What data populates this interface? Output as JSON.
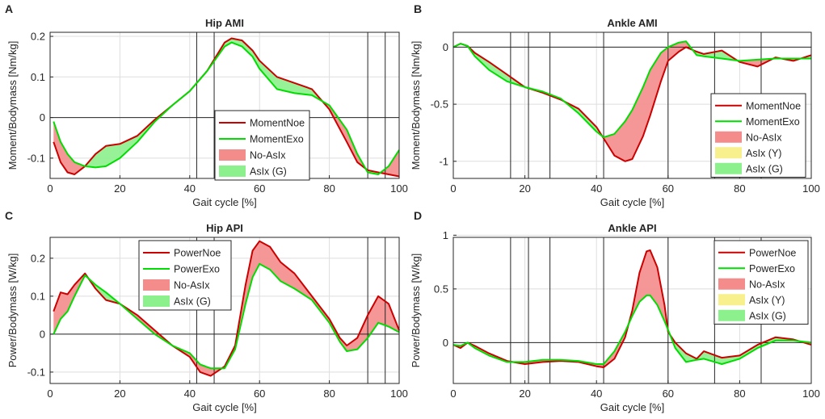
{
  "chart_data": [
    {
      "panel": "A",
      "type": "line",
      "title": "Hip AMI",
      "xlabel": "Gait cycle [%]",
      "ylabel": "Moment/Bodymass [Nm/kg]",
      "xlim": [
        0,
        100
      ],
      "ylim": [
        -0.15,
        0.21
      ],
      "xticks": [
        0,
        20,
        40,
        60,
        80,
        100
      ],
      "yticks": [
        -0.1,
        0,
        0.1,
        0.2
      ],
      "ytick_labels": [
        "-0.1",
        "0",
        "0.1",
        "0.2"
      ],
      "grid": true,
      "legend_position": "bottom-right",
      "vlines": [
        42,
        47,
        91,
        96
      ],
      "x": [
        1,
        3,
        5,
        7,
        10,
        13,
        16,
        20,
        25,
        30,
        35,
        40,
        45,
        50,
        52,
        55,
        58,
        60,
        65,
        70,
        75,
        80,
        85,
        88,
        91,
        94,
        97,
        100
      ],
      "series": [
        {
          "name": "MomentNoe",
          "color": "#cc0000",
          "values": [
            -0.06,
            -0.11,
            -0.135,
            -0.14,
            -0.12,
            -0.09,
            -0.07,
            -0.065,
            -0.045,
            -0.005,
            0.03,
            0.065,
            0.115,
            0.185,
            0.195,
            0.19,
            0.165,
            0.14,
            0.1,
            0.085,
            0.07,
            0.02,
            -0.06,
            -0.11,
            -0.13,
            -0.135,
            -0.14,
            -0.145
          ]
        },
        {
          "name": "MomentExo",
          "color": "#00dd00",
          "values": [
            -0.01,
            -0.06,
            -0.09,
            -0.11,
            -0.12,
            -0.123,
            -0.12,
            -0.1,
            -0.06,
            -0.01,
            0.03,
            0.065,
            0.115,
            0.175,
            0.185,
            0.175,
            0.15,
            0.12,
            0.07,
            0.06,
            0.055,
            0.03,
            -0.03,
            -0.09,
            -0.135,
            -0.14,
            -0.12,
            -0.08
          ]
        }
      ],
      "legend": [
        {
          "label": "MomentNoe",
          "kind": "line",
          "color": "#cc0000"
        },
        {
          "label": "MomentExo",
          "kind": "line",
          "color": "#00dd00"
        },
        {
          "label": "No-AsIx",
          "kind": "patch",
          "color": "#f48c8c"
        },
        {
          "label": "AsIx (G)",
          "kind": "patch",
          "color": "#8cf08c"
        }
      ]
    },
    {
      "panel": "B",
      "type": "line",
      "title": "Ankle AMI",
      "xlabel": "Gait cycle [%]",
      "ylabel": "Moment/Bodymass [Nm/kg]",
      "xlim": [
        0,
        100
      ],
      "ylim": [
        -1.15,
        0.13
      ],
      "xticks": [
        0,
        20,
        40,
        60,
        80,
        100
      ],
      "yticks": [
        -1,
        -0.5,
        0
      ],
      "ytick_labels": [
        "-1",
        "-0.5",
        "0"
      ],
      "grid": true,
      "legend_position": "bottom-right",
      "vlines": [
        16,
        21,
        27,
        42,
        60,
        73,
        86
      ],
      "x": [
        0,
        2,
        4,
        6,
        10,
        15,
        20,
        25,
        30,
        35,
        40,
        42,
        45,
        48,
        50,
        53,
        55,
        58,
        60,
        63,
        65,
        68,
        70,
        75,
        80,
        85,
        90,
        95,
        100
      ],
      "series": [
        {
          "name": "MomentNoe",
          "color": "#cc0000",
          "values": [
            0,
            0.03,
            0.01,
            -0.05,
            -0.13,
            -0.24,
            -0.35,
            -0.4,
            -0.46,
            -0.54,
            -0.7,
            -0.8,
            -0.95,
            -1.0,
            -0.98,
            -0.78,
            -0.6,
            -0.3,
            -0.12,
            -0.04,
            0.0,
            -0.04,
            -0.06,
            -0.03,
            -0.13,
            -0.17,
            -0.09,
            -0.12,
            -0.07
          ]
        },
        {
          "name": "MomentExo",
          "color": "#00dd00",
          "values": [
            0,
            0.03,
            0.01,
            -0.08,
            -0.2,
            -0.3,
            -0.35,
            -0.39,
            -0.45,
            -0.58,
            -0.74,
            -0.79,
            -0.76,
            -0.65,
            -0.55,
            -0.35,
            -0.2,
            -0.05,
            0.0,
            0.04,
            0.05,
            -0.07,
            -0.08,
            -0.1,
            -0.12,
            -0.11,
            -0.1,
            -0.1,
            -0.1
          ]
        }
      ],
      "legend": [
        {
          "label": "MomentNoe",
          "kind": "line",
          "color": "#cc0000"
        },
        {
          "label": "MomentExo",
          "kind": "line",
          "color": "#00dd00"
        },
        {
          "label": "No-AsIx",
          "kind": "patch",
          "color": "#f48c8c"
        },
        {
          "label": "AsIx (Y)",
          "kind": "patch",
          "color": "#f8f08c"
        },
        {
          "label": "AsIx (G)",
          "kind": "patch",
          "color": "#8cf08c"
        }
      ]
    },
    {
      "panel": "C",
      "type": "line",
      "title": "Hip API",
      "xlabel": "Gait cycle [%]",
      "ylabel": "Power/Bodymass [W/kg]",
      "xlim": [
        0,
        100
      ],
      "ylim": [
        -0.13,
        0.255
      ],
      "xticks": [
        0,
        20,
        40,
        60,
        80,
        100
      ],
      "yticks": [
        -0.1,
        0,
        0.1,
        0.2
      ],
      "ytick_labels": [
        "-0.1",
        "0",
        "0.1",
        "0.2"
      ],
      "grid": true,
      "legend_position": "top-left",
      "vlines": [
        42,
        47,
        91,
        96
      ],
      "x": [
        1,
        3,
        5,
        7,
        10,
        13,
        16,
        20,
        25,
        30,
        35,
        40,
        43,
        46,
        50,
        53,
        56,
        58,
        60,
        63,
        66,
        70,
        75,
        80,
        83,
        85,
        88,
        91,
        94,
        97,
        100
      ],
      "series": [
        {
          "name": "PowerNoe",
          "color": "#cc0000",
          "values": [
            0.06,
            0.11,
            0.105,
            0.13,
            0.16,
            0.12,
            0.09,
            0.08,
            0.05,
            0.01,
            -0.03,
            -0.06,
            -0.1,
            -0.11,
            -0.085,
            -0.03,
            0.13,
            0.22,
            0.245,
            0.23,
            0.19,
            0.16,
            0.1,
            0.04,
            -0.01,
            -0.03,
            -0.01,
            0.05,
            0.1,
            0.08,
            0.01
          ]
        },
        {
          "name": "PowerExo",
          "color": "#00dd00",
          "values": [
            0.0,
            0.04,
            0.06,
            0.1,
            0.155,
            0.13,
            0.11,
            0.08,
            0.04,
            0.0,
            -0.03,
            -0.05,
            -0.08,
            -0.09,
            -0.09,
            -0.04,
            0.08,
            0.15,
            0.185,
            0.17,
            0.14,
            0.12,
            0.09,
            0.03,
            -0.02,
            -0.045,
            -0.04,
            -0.01,
            0.03,
            0.02,
            0.005
          ]
        }
      ],
      "legend": [
        {
          "label": "PowerNoe",
          "kind": "line",
          "color": "#cc0000"
        },
        {
          "label": "PowerExo",
          "kind": "line",
          "color": "#00dd00"
        },
        {
          "label": "No-AsIx",
          "kind": "patch",
          "color": "#f48c8c"
        },
        {
          "label": "AsIx (G)",
          "kind": "patch",
          "color": "#8cf08c"
        }
      ]
    },
    {
      "panel": "D",
      "type": "line",
      "title": "Ankle API",
      "xlabel": "Gait cycle [%]",
      "ylabel": "Power/Bodymass [W/kg]",
      "xlim": [
        0,
        100
      ],
      "ylim": [
        -0.38,
        0.98
      ],
      "xticks": [
        0,
        20,
        40,
        60,
        80,
        100
      ],
      "yticks": [
        0,
        0.5,
        1
      ],
      "ytick_labels": [
        "0",
        "0.5",
        "1"
      ],
      "grid": true,
      "legend_position": "top-right",
      "vlines": [
        16,
        21,
        27,
        42,
        60,
        73,
        86
      ],
      "x": [
        0,
        2,
        4,
        6,
        10,
        15,
        20,
        25,
        30,
        35,
        40,
        42,
        45,
        48,
        50,
        52,
        54,
        55,
        57,
        59,
        60,
        62,
        65,
        68,
        70,
        75,
        80,
        85,
        90,
        95,
        100
      ],
      "series": [
        {
          "name": "PowerNoe",
          "color": "#cc0000",
          "values": [
            -0.02,
            -0.05,
            0.0,
            -0.03,
            -0.1,
            -0.17,
            -0.2,
            -0.18,
            -0.17,
            -0.18,
            -0.22,
            -0.23,
            -0.15,
            0.05,
            0.3,
            0.65,
            0.85,
            0.86,
            0.7,
            0.35,
            0.1,
            0.0,
            -0.1,
            -0.15,
            -0.08,
            -0.14,
            -0.12,
            -0.02,
            0.05,
            0.03,
            -0.02
          ]
        },
        {
          "name": "PowerExo",
          "color": "#00dd00",
          "values": [
            -0.02,
            -0.03,
            0.0,
            -0.05,
            -0.12,
            -0.18,
            -0.18,
            -0.16,
            -0.16,
            -0.17,
            -0.2,
            -0.2,
            -0.08,
            0.1,
            0.25,
            0.38,
            0.44,
            0.44,
            0.35,
            0.2,
            0.12,
            -0.05,
            -0.18,
            -0.16,
            -0.15,
            -0.2,
            -0.15,
            -0.05,
            0.02,
            0.02,
            0.0
          ]
        }
      ],
      "legend": [
        {
          "label": "PowerNoe",
          "kind": "line",
          "color": "#cc0000"
        },
        {
          "label": "PowerExo",
          "kind": "line",
          "color": "#00dd00"
        },
        {
          "label": "No-AsIx",
          "kind": "patch",
          "color": "#f48c8c"
        },
        {
          "label": "AsIx (Y)",
          "kind": "patch",
          "color": "#f8f08c"
        },
        {
          "label": "AsIx (G)",
          "kind": "patch",
          "color": "#8cf08c"
        }
      ]
    }
  ]
}
